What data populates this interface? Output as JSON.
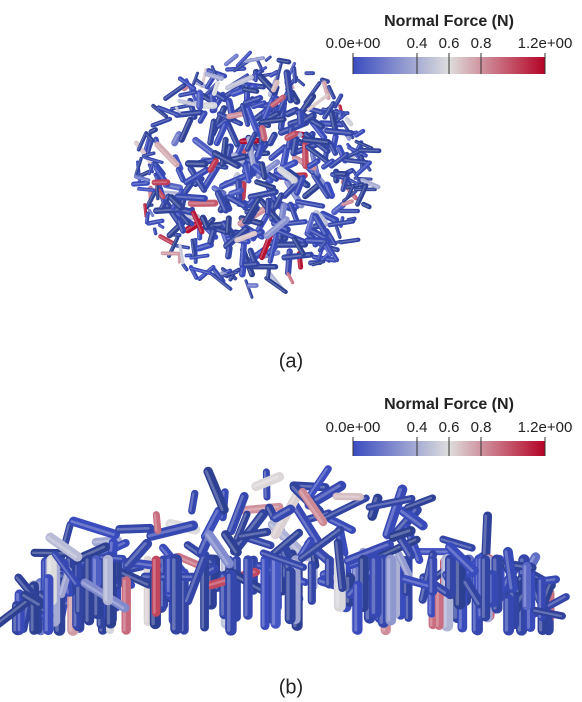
{
  "panels": [
    {
      "label": "(a)",
      "colorbar": {
        "title": "Normal Force (N)",
        "range": [
          0,
          1.2
        ],
        "ticks": [
          {
            "value": 0,
            "label": "0.0e+00"
          },
          0.4,
          0.6,
          0.8,
          {
            "value": 1.2,
            "label": "1.2e+00"
          }
        ],
        "colormap": [
          "#3b4cc0",
          "#dddddd",
          "#b40426"
        ]
      }
    },
    {
      "label": "(b)",
      "colorbar": {
        "title": "Normal Force (N)",
        "range": [
          0,
          1.2
        ],
        "ticks": [
          {
            "value": 0,
            "label": "0.0e+00"
          },
          0.4,
          0.6,
          0.8,
          {
            "value": 1.2,
            "label": "1.2e+00"
          }
        ],
        "colormap": [
          "#3b4cc0",
          "#dddddd",
          "#b40426"
        ]
      }
    }
  ]
}
